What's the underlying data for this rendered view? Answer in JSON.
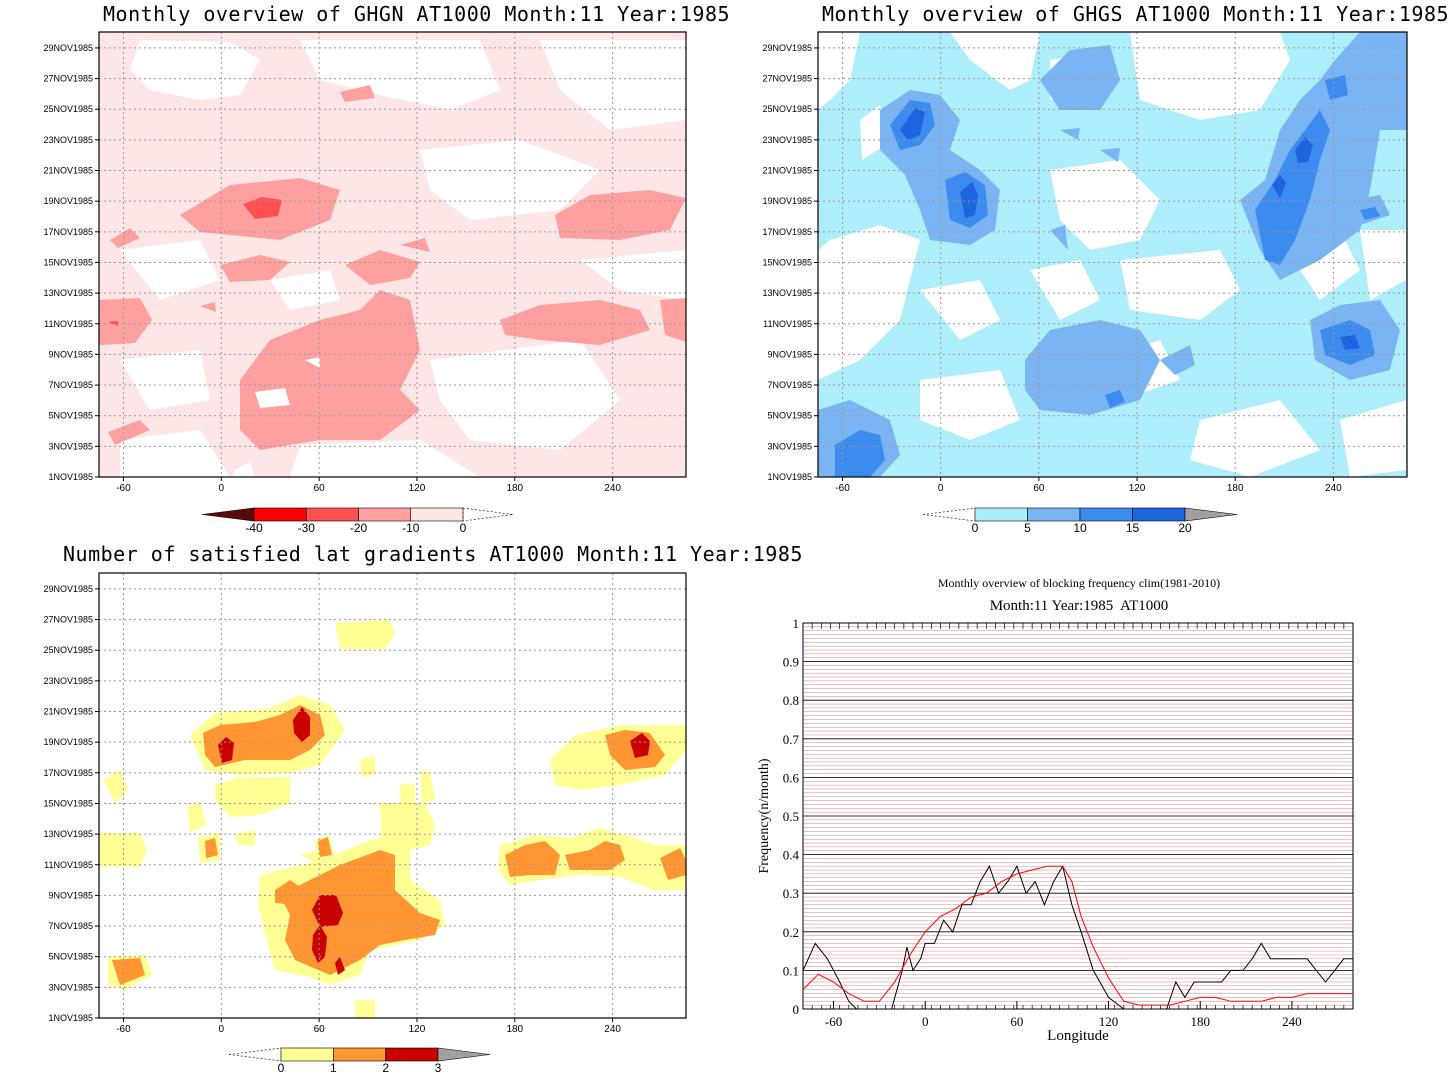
{
  "chart_data": [
    {
      "type": "heatmap",
      "title": "Monthly overview of GHGN AT1000 Month:11 Year:1985",
      "xlim": [
        -75,
        285
      ],
      "x_ticks": [
        "-60",
        "0",
        "60",
        "120",
        "180",
        "240"
      ],
      "y_ticks": [
        "1NOV1985",
        "3NOV1985",
        "5NOV1985",
        "7NOV1985",
        "9NOV1985",
        "11NOV1985",
        "13NOV1985",
        "15NOV1985",
        "17NOV1985",
        "19NOV1985",
        "21NOV1985",
        "23NOV1985",
        "25NOV1985",
        "27NOV1985",
        "29NOV1985"
      ],
      "colorbar": {
        "labels": [
          "-40",
          "-30",
          "-20",
          "-10",
          "0"
        ],
        "colors": [
          "#5a0a0a",
          "#ff0000",
          "#ff5050",
          "#ffa0a0",
          "#ffe6e6"
        ]
      },
      "grid": true
    },
    {
      "type": "heatmap",
      "title": "Monthly overview of GHGS AT1000 Month:11 Year:1985",
      "xlim": [
        -75,
        285
      ],
      "x_ticks": [
        "-60",
        "0",
        "60",
        "120",
        "180",
        "240"
      ],
      "y_ticks": [
        "1NOV1985",
        "3NOV1985",
        "5NOV1985",
        "7NOV1985",
        "9NOV1985",
        "11NOV1985",
        "13NOV1985",
        "15NOV1985",
        "17NOV1985",
        "19NOV1985",
        "21NOV1985",
        "23NOV1985",
        "25NOV1985",
        "27NOV1985",
        "29NOV1985"
      ],
      "colorbar": {
        "labels": [
          "0",
          "5",
          "10",
          "15",
          "20"
        ],
        "colors": [
          "#aeeefa",
          "#7ab4f2",
          "#3c8cf0",
          "#1e64dc",
          "#a0a0a0"
        ]
      },
      "grid": true
    },
    {
      "type": "heatmap",
      "title": "Number of satisfied lat gradients AT1000 Month:11 Year:1985",
      "xlim": [
        -75,
        285
      ],
      "x_ticks": [
        "-60",
        "0",
        "60",
        "120",
        "180",
        "240"
      ],
      "y_ticks": [
        "1NOV1985",
        "3NOV1985",
        "5NOV1985",
        "7NOV1985",
        "9NOV1985",
        "11NOV1985",
        "13NOV1985",
        "15NOV1985",
        "17NOV1985",
        "19NOV1985",
        "21NOV1985",
        "23NOV1985",
        "25NOV1985",
        "27NOV1985",
        "29NOV1985"
      ],
      "colorbar": {
        "labels": [
          "0",
          "1",
          "2",
          "3"
        ],
        "colors": [
          "#ffff96",
          "#ff9632",
          "#c80000",
          "#a0a0a0"
        ]
      },
      "grid": true
    },
    {
      "type": "line",
      "title": "Monthly overview of blocking frequency clim(1981-2010)",
      "subtitle": "Month:11 Year:1985  AT1000",
      "xlabel": "Longitude",
      "ylabel": "Frequency(n/month)",
      "xlim": [
        -80,
        280
      ],
      "ylim": [
        0,
        1
      ],
      "x_ticks": [
        "-60",
        "0",
        "60",
        "120",
        "180",
        "240"
      ],
      "y_ticks": [
        "0",
        "0.1",
        "0.2",
        "0.3",
        "0.4",
        "0.5",
        "0.6",
        "0.7",
        "0.8",
        "0.9",
        "1"
      ],
      "series": [
        {
          "color": "#000000",
          "x": [
            -80,
            -72,
            -64,
            -56,
            -50,
            -45,
            -38,
            -30,
            -22,
            -15,
            -12,
            -8,
            -3,
            0,
            6,
            12,
            18,
            24,
            30,
            36,
            42,
            48,
            54,
            60,
            66,
            72,
            78,
            84,
            90,
            96,
            102,
            110,
            120,
            130,
            140,
            150,
            158,
            164,
            170,
            176,
            182,
            188,
            194,
            200,
            208,
            214,
            220,
            226,
            232,
            238,
            244,
            250,
            256,
            262,
            268,
            274,
            280
          ],
          "y": [
            0.1,
            0.17,
            0.13,
            0.07,
            0.02,
            0,
            0,
            0,
            0,
            0.1,
            0.16,
            0.1,
            0.13,
            0.17,
            0.17,
            0.23,
            0.2,
            0.27,
            0.27,
            0.33,
            0.37,
            0.3,
            0.33,
            0.37,
            0.3,
            0.33,
            0.27,
            0.33,
            0.37,
            0.27,
            0.2,
            0.1,
            0.03,
            0,
            0,
            0,
            0,
            0.07,
            0.03,
            0.07,
            0.07,
            0.07,
            0.07,
            0.1,
            0.1,
            0.13,
            0.17,
            0.13,
            0.13,
            0.13,
            0.13,
            0.13,
            0.1,
            0.07,
            0.1,
            0.13,
            0.13
          ]
        },
        {
          "color": "#ff0000",
          "x": [
            -80,
            -70,
            -60,
            -50,
            -40,
            -30,
            -20,
            -10,
            0,
            10,
            20,
            30,
            40,
            50,
            60,
            70,
            80,
            90,
            96,
            102,
            110,
            120,
            130,
            140,
            150,
            160,
            170,
            180,
            190,
            200,
            210,
            220,
            230,
            240,
            250,
            260,
            270,
            280
          ],
          "y": [
            0.05,
            0.09,
            0.07,
            0.04,
            0.02,
            0.02,
            0.07,
            0.14,
            0.2,
            0.24,
            0.26,
            0.29,
            0.3,
            0.33,
            0.35,
            0.36,
            0.37,
            0.37,
            0.33,
            0.24,
            0.16,
            0.08,
            0.02,
            0.01,
            0.01,
            0.01,
            0.02,
            0.03,
            0.03,
            0.02,
            0.02,
            0.02,
            0.03,
            0.03,
            0.04,
            0.04,
            0.04,
            0.04
          ]
        }
      ],
      "grid": true
    }
  ]
}
